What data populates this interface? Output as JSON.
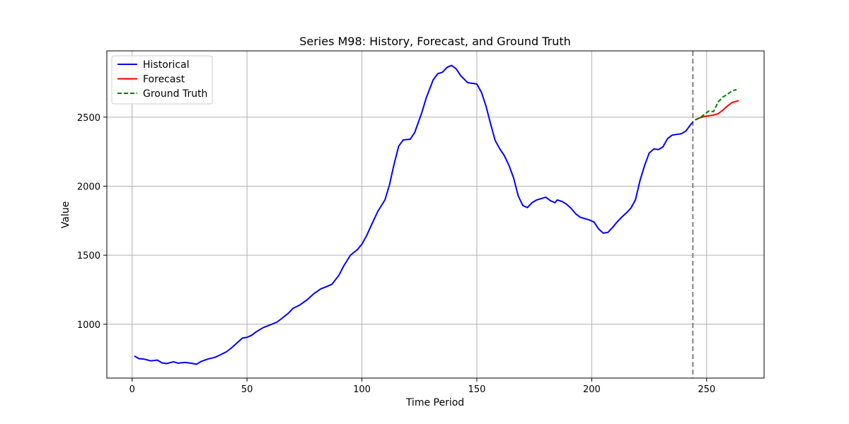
{
  "chart_data": {
    "type": "line",
    "title": "Series M98: History, Forecast, and Ground Truth",
    "xlabel": "Time Period",
    "ylabel": "Value",
    "xlim": [
      -11,
      275
    ],
    "ylim": [
      610,
      2980
    ],
    "x_ticks": [
      0,
      50,
      100,
      150,
      200,
      250
    ],
    "y_ticks": [
      1000,
      1500,
      2000,
      2500
    ],
    "grid": true,
    "legend_position": "top-left",
    "forecast_start_marker": 244,
    "series": [
      {
        "name": "Historical",
        "color": "#0000ff",
        "style": "solid",
        "points": [
          [
            1,
            770
          ],
          [
            3,
            750
          ],
          [
            5,
            748
          ],
          [
            8,
            735
          ],
          [
            11,
            740
          ],
          [
            13,
            720
          ],
          [
            15,
            715
          ],
          [
            18,
            728
          ],
          [
            20,
            718
          ],
          [
            23,
            723
          ],
          [
            26,
            717
          ],
          [
            28,
            710
          ],
          [
            30,
            730
          ],
          [
            33,
            748
          ],
          [
            36,
            760
          ],
          [
            38,
            775
          ],
          [
            41,
            800
          ],
          [
            43,
            825
          ],
          [
            46,
            870
          ],
          [
            48,
            900
          ],
          [
            50,
            905
          ],
          [
            52,
            920
          ],
          [
            54,
            945
          ],
          [
            57,
            975
          ],
          [
            60,
            995
          ],
          [
            63,
            1015
          ],
          [
            65,
            1040
          ],
          [
            68,
            1080
          ],
          [
            70,
            1115
          ],
          [
            73,
            1140
          ],
          [
            76,
            1175
          ],
          [
            79,
            1220
          ],
          [
            82,
            1255
          ],
          [
            85,
            1275
          ],
          [
            87,
            1290
          ],
          [
            90,
            1355
          ],
          [
            92,
            1420
          ],
          [
            95,
            1500
          ],
          [
            98,
            1540
          ],
          [
            100,
            1580
          ],
          [
            102,
            1640
          ],
          [
            105,
            1750
          ],
          [
            107,
            1820
          ],
          [
            110,
            1900
          ],
          [
            112,
            2010
          ],
          [
            114,
            2160
          ],
          [
            116,
            2290
          ],
          [
            118,
            2335
          ],
          [
            121,
            2340
          ],
          [
            123,
            2390
          ],
          [
            126,
            2530
          ],
          [
            128,
            2640
          ],
          [
            131,
            2770
          ],
          [
            133,
            2815
          ],
          [
            135,
            2825
          ],
          [
            137,
            2860
          ],
          [
            139,
            2875
          ],
          [
            141,
            2850
          ],
          [
            143,
            2800
          ],
          [
            146,
            2750
          ],
          [
            148,
            2745
          ],
          [
            150,
            2740
          ],
          [
            152,
            2680
          ],
          [
            154,
            2580
          ],
          [
            156,
            2450
          ],
          [
            158,
            2330
          ],
          [
            160,
            2270
          ],
          [
            162,
            2220
          ],
          [
            164,
            2150
          ],
          [
            166,
            2060
          ],
          [
            168,
            1930
          ],
          [
            170,
            1860
          ],
          [
            172,
            1845
          ],
          [
            174,
            1880
          ],
          [
            176,
            1900
          ],
          [
            178,
            1910
          ],
          [
            180,
            1920
          ],
          [
            182,
            1895
          ],
          [
            184,
            1880
          ],
          [
            185,
            1900
          ],
          [
            187,
            1890
          ],
          [
            189,
            1870
          ],
          [
            191,
            1840
          ],
          [
            193,
            1800
          ],
          [
            195,
            1775
          ],
          [
            197,
            1765
          ],
          [
            199,
            1755
          ],
          [
            201,
            1740
          ],
          [
            203,
            1690
          ],
          [
            205,
            1660
          ],
          [
            207,
            1665
          ],
          [
            209,
            1700
          ],
          [
            211,
            1740
          ],
          [
            213,
            1775
          ],
          [
            215,
            1805
          ],
          [
            217,
            1840
          ],
          [
            219,
            1900
          ],
          [
            221,
            2040
          ],
          [
            223,
            2150
          ],
          [
            225,
            2240
          ],
          [
            227,
            2270
          ],
          [
            229,
            2265
          ],
          [
            231,
            2285
          ],
          [
            233,
            2345
          ],
          [
            235,
            2370
          ],
          [
            237,
            2375
          ],
          [
            239,
            2380
          ],
          [
            241,
            2400
          ],
          [
            243,
            2445
          ],
          [
            244,
            2465
          ]
        ]
      },
      {
        "name": "Forecast",
        "color": "#ff0000",
        "style": "solid",
        "points": [
          [
            245,
            2480
          ],
          [
            247,
            2495
          ],
          [
            249,
            2505
          ],
          [
            251,
            2510
          ],
          [
            253,
            2515
          ],
          [
            255,
            2525
          ],
          [
            257,
            2550
          ],
          [
            259,
            2580
          ],
          [
            261,
            2605
          ],
          [
            263,
            2615
          ],
          [
            264,
            2620
          ]
        ]
      },
      {
        "name": "Ground Truth",
        "color": "#008000",
        "style": "dashed",
        "points": [
          [
            245,
            2480
          ],
          [
            247,
            2495
          ],
          [
            249,
            2520
          ],
          [
            251,
            2545
          ],
          [
            253,
            2540
          ],
          [
            255,
            2610
          ],
          [
            257,
            2645
          ],
          [
            259,
            2665
          ],
          [
            261,
            2690
          ],
          [
            263,
            2700
          ]
        ]
      }
    ]
  }
}
